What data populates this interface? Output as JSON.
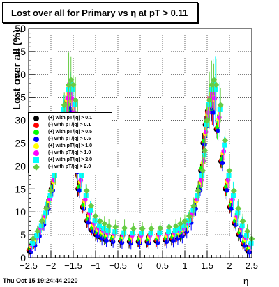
{
  "chart_data": {
    "type": "scatter",
    "title": "Lost over all for Primary vs   η at pT > 0.11",
    "xlabel": "η",
    "ylabel": "Lost over all (%)",
    "xlim": [
      -2.5,
      2.5
    ],
    "ylim": [
      0,
      50
    ],
    "x_ticks": [
      "−2.5",
      "−2",
      "−1.5",
      "−1",
      "−0.5",
      "0",
      "0.5",
      "1",
      "1.5",
      "2",
      "2.5"
    ],
    "y_ticks": [
      "0",
      "5",
      "10",
      "15",
      "20",
      "25",
      "30",
      "35",
      "40",
      "45",
      "50"
    ],
    "grid": true,
    "legend_position": "left",
    "series": [
      {
        "name": "(+) with pT/|q| > 0.1",
        "color": "#000000",
        "marker": "circle",
        "scale": 1.0,
        "offset": 0.0
      },
      {
        "name": "(-) with pT/|q| > 0.1",
        "color": "#ff0000",
        "marker": "circle",
        "scale": 1.0,
        "offset": 0.3
      },
      {
        "name": "(+) with pT/|q| > 0.5",
        "color": "#00ff00",
        "marker": "circle",
        "scale": 1.0,
        "offset": 0.5
      },
      {
        "name": "(-) with pT/|q| > 0.5",
        "color": "#0000ff",
        "marker": "circle",
        "scale": 1.0,
        "offset": -0.3
      },
      {
        "name": "(+) with pT/|q| > 1.0",
        "color": "#ffff00",
        "marker": "circle",
        "scale": 1.05,
        "offset": 0.8
      },
      {
        "name": "(-) with pT/|q| > 1.0",
        "color": "#ff00ff",
        "marker": "circle",
        "scale": 1.05,
        "offset": 1.2
      },
      {
        "name": "(+) with pT/|q| > 2.0",
        "color": "#00ffff",
        "marker": "square",
        "scale": 1.1,
        "offset": 1.5
      },
      {
        "name": "(-) with pT/|q| > 2.0",
        "color": "#66cc44",
        "marker": "diamond",
        "scale": 1.1,
        "offset": 2.5
      }
    ],
    "profile": {
      "eta": [
        -2.45,
        -2.35,
        -2.25,
        -2.15,
        -2.05,
        -1.95,
        -1.85,
        -1.75,
        -1.65,
        -1.6,
        -1.55,
        -1.5,
        -1.45,
        -1.4,
        -1.35,
        -1.25,
        -1.15,
        -1.05,
        -0.95,
        -0.85,
        -0.75,
        -0.6,
        -0.4,
        -0.2,
        0.0,
        0.2,
        0.4,
        0.6,
        0.75,
        0.85,
        0.95,
        1.05,
        1.15,
        1.25,
        1.35,
        1.4,
        1.45,
        1.5,
        1.55,
        1.6,
        1.65,
        1.75,
        1.85,
        1.95,
        2.05,
        2.15,
        2.25,
        2.35,
        2.45
      ],
      "lost_pct": [
        1.5,
        3,
        5,
        7.5,
        11,
        15,
        21,
        28,
        32,
        33,
        32,
        29,
        25,
        19,
        15,
        11,
        8,
        6,
        5,
        4.5,
        4,
        3.8,
        3.6,
        3.5,
        3.5,
        3.5,
        3.6,
        3.8,
        4,
        4.5,
        5,
        6,
        8,
        11,
        15,
        19,
        25,
        29,
        32,
        33,
        32,
        28,
        21,
        15,
        11,
        7.5,
        5,
        3,
        1.5
      ]
    }
  },
  "footer": "Thu Oct 15 19:24:44 2020"
}
